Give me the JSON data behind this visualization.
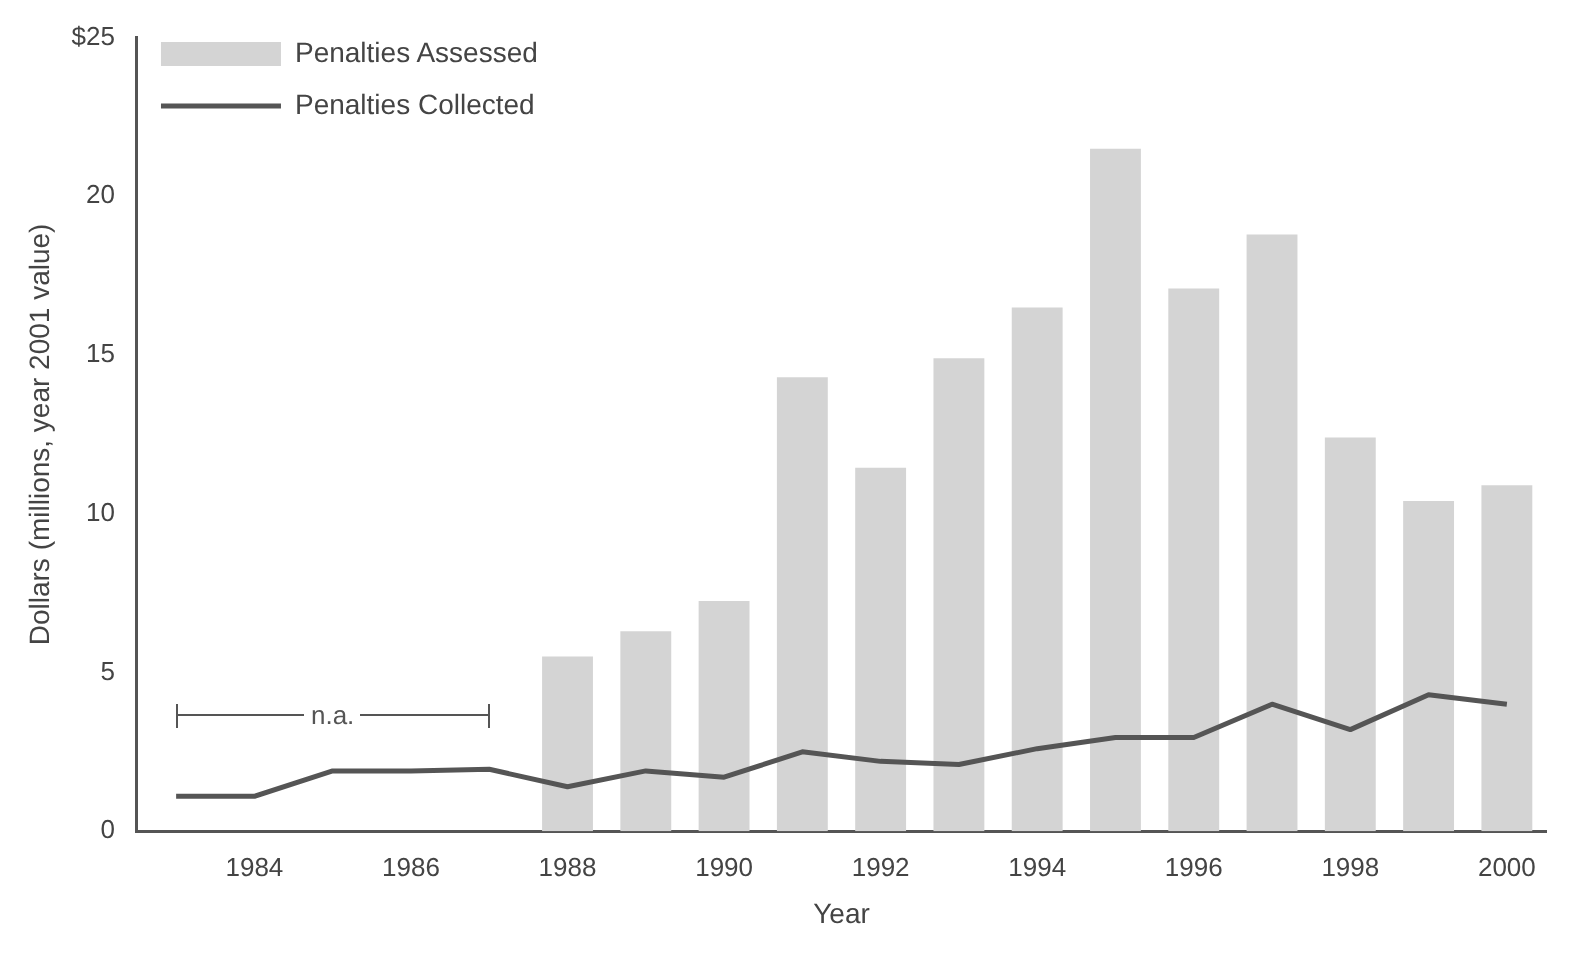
{
  "chart_data": {
    "type": "bar",
    "xlabel": "Year",
    "ylabel": "Dollars (millions, year 2001 value)",
    "categories": [
      null,
      "1984",
      null,
      "1986",
      null,
      "1988",
      null,
      "1990",
      null,
      "1992",
      null,
      "1994",
      null,
      "1996",
      null,
      "1998",
      null,
      "2000"
    ],
    "series": [
      {
        "name": "Penalties Assessed",
        "color": "#d4d4d4",
        "values": [
          null,
          null,
          null,
          null,
          null,
          5.5,
          6.3,
          7.25,
          14.3,
          11.45,
          14.9,
          16.5,
          21.5,
          17.1,
          18.8,
          12.4,
          10.4,
          10.9
        ]
      },
      {
        "name": "Penalties Collected",
        "type": "line",
        "color": "#555555",
        "values": [
          1.1,
          1.1,
          1.9,
          1.9,
          1.95,
          1.4,
          1.9,
          1.7,
          2.5,
          2.2,
          2.1,
          2.6,
          2.95,
          2.95,
          4.0,
          3.2,
          4.3,
          4.0
        ]
      }
    ],
    "ylim": [
      0,
      25
    ],
    "yticks": [
      0,
      5,
      10,
      15,
      20,
      {
        "value": 25,
        "label": "$25"
      }
    ],
    "annotations": [
      "n.a."
    ],
    "grid": false,
    "legend": "top left",
    "marker": "none",
    "line_style": "solid"
  }
}
